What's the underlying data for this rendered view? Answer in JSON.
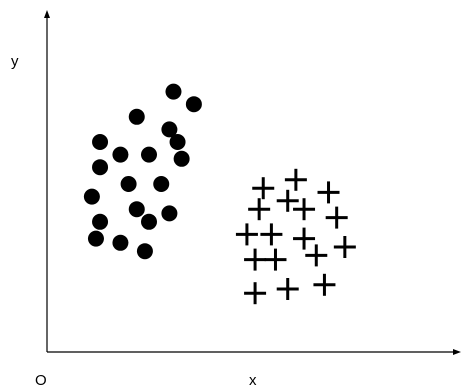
{
  "chart_data": {
    "type": "scatter",
    "title": "",
    "xlabel": "x",
    "ylabel": "y",
    "origin_label": "O",
    "xlim": [
      0,
      10
    ],
    "ylim": [
      0,
      8
    ],
    "grid": false,
    "legend": "none",
    "series": [
      {
        "marker": "circle",
        "color": "#000000",
        "points": [
          [
            3.1,
            6.2
          ],
          [
            3.6,
            5.9
          ],
          [
            2.2,
            5.6
          ],
          [
            3.0,
            5.3
          ],
          [
            3.2,
            5.0
          ],
          [
            1.3,
            5.0
          ],
          [
            2.5,
            4.7
          ],
          [
            1.8,
            4.7
          ],
          [
            3.3,
            4.6
          ],
          [
            1.3,
            4.4
          ],
          [
            2.0,
            4.0
          ],
          [
            2.8,
            4.0
          ],
          [
            1.1,
            3.7
          ],
          [
            2.2,
            3.4
          ],
          [
            3.0,
            3.3
          ],
          [
            1.3,
            3.1
          ],
          [
            2.5,
            3.1
          ],
          [
            1.2,
            2.7
          ],
          [
            1.8,
            2.6
          ],
          [
            2.4,
            2.4
          ]
        ]
      },
      {
        "marker": "plus",
        "color": "#000000",
        "points": [
          [
            6.1,
            4.1
          ],
          [
            5.3,
            3.9
          ],
          [
            6.9,
            3.8
          ],
          [
            5.9,
            3.6
          ],
          [
            5.2,
            3.4
          ],
          [
            6.3,
            3.4
          ],
          [
            7.1,
            3.2
          ],
          [
            4.9,
            2.8
          ],
          [
            5.5,
            2.8
          ],
          [
            6.3,
            2.7
          ],
          [
            7.3,
            2.5
          ],
          [
            6.6,
            2.3
          ],
          [
            5.1,
            2.2
          ],
          [
            5.6,
            2.2
          ],
          [
            6.8,
            1.6
          ],
          [
            5.9,
            1.5
          ],
          [
            5.1,
            1.4
          ]
        ]
      }
    ]
  }
}
